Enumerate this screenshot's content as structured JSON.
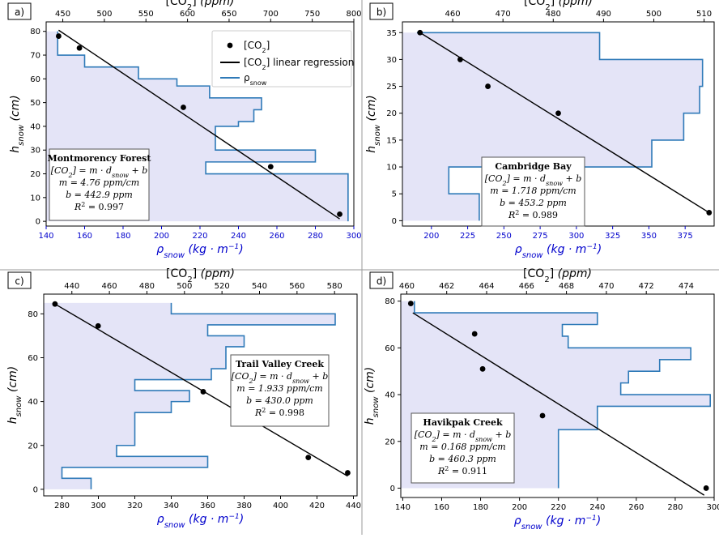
{
  "chart_data": [
    {
      "type": "line",
      "panel": "a)",
      "site": "Montmorency Forest",
      "co2_label": "[CO2]",
      "regression_label": "[CO2] linear regression",
      "rho_label": "ρsnow",
      "xlabel_bottom": "ρsnow (kg · m−1)",
      "xlabel_top": "[CO2] (ppm)",
      "ylabel": "hsnow (cm)",
      "xlim": [
        140,
        300
      ],
      "ylim": [
        -2,
        84
      ],
      "top_xlim": [
        430,
        800
      ],
      "xticks": [
        140,
        160,
        180,
        200,
        220,
        240,
        260,
        280,
        300
      ],
      "yticks": [
        0,
        10,
        20,
        30,
        40,
        50,
        60,
        70,
        80
      ],
      "top_ticks": [
        450,
        500,
        550,
        600,
        650,
        700,
        750,
        800
      ],
      "density_profile": [
        {
          "h_top": 80,
          "h_bottom": 70,
          "rho": 146
        },
        {
          "h_top": 70,
          "h_bottom": 65,
          "rho": 160
        },
        {
          "h_top": 65,
          "h_bottom": 60,
          "rho": 188
        },
        {
          "h_top": 60,
          "h_bottom": 57,
          "rho": 208
        },
        {
          "h_top": 57,
          "h_bottom": 52,
          "rho": 225
        },
        {
          "h_top": 52,
          "h_bottom": 47,
          "rho": 252
        },
        {
          "h_top": 47,
          "h_bottom": 42,
          "rho": 248
        },
        {
          "h_top": 42,
          "h_bottom": 40,
          "rho": 240
        },
        {
          "h_top": 40,
          "h_bottom": 30,
          "rho": 228
        },
        {
          "h_top": 30,
          "h_bottom": 25,
          "rho": 280
        },
        {
          "h_top": 25,
          "h_bottom": 20,
          "rho": 223
        },
        {
          "h_top": 20,
          "h_bottom": 0,
          "rho": 297
        }
      ],
      "co2_points": [
        {
          "co2": 445,
          "h": 78
        },
        {
          "co2": 470,
          "h": 73
        },
        {
          "co2": 595,
          "h": 48
        },
        {
          "co2": 700,
          "h": 23
        },
        {
          "co2": 783,
          "h": 3
        }
      ],
      "regression": {
        "co2_start": 445,
        "h_start": 80.5,
        "co2_end": 783,
        "h_end": 1
      },
      "stats": {
        "title": "Montmorency Forest",
        "equation": "[CO2] = m · dsnow + b",
        "m": "m = 4.76 ppm/cm",
        "b": "b = 442.9 ppm",
        "r2": "R2 = 0.997"
      },
      "colors": {
        "fill": "#e4e4f7",
        "step": "#2f7ab8",
        "points": "#000000",
        "regression": "#000000",
        "bottom_ticks": "#0000cc"
      }
    },
    {
      "type": "line",
      "panel": "b)",
      "site": "Cambridge Bay",
      "xlabel_bottom": "ρsnow (kg · m−1)",
      "xlabel_top": "[CO2] (ppm)",
      "ylabel": "hsnow (cm)",
      "xlim": [
        180,
        395
      ],
      "ylim": [
        -1,
        37
      ],
      "top_xlim": [
        450,
        512
      ],
      "xticks": [
        200,
        225,
        250,
        275,
        300,
        325,
        350,
        375
      ],
      "yticks": [
        0,
        5,
        10,
        15,
        20,
        25,
        30,
        35
      ],
      "top_ticks": [
        460,
        470,
        480,
        490,
        500,
        510
      ],
      "density_profile": [
        {
          "h_top": 35,
          "h_bottom": 30,
          "rho": 316
        },
        {
          "h_top": 30,
          "h_bottom": 25,
          "rho": 387
        },
        {
          "h_top": 25,
          "h_bottom": 20,
          "rho": 385
        },
        {
          "h_top": 20,
          "h_bottom": 15,
          "rho": 374
        },
        {
          "h_top": 15,
          "h_bottom": 10,
          "rho": 352
        },
        {
          "h_top": 10,
          "h_bottom": 5,
          "rho": 212
        },
        {
          "h_top": 5,
          "h_bottom": 0,
          "rho": 233
        }
      ],
      "density_edge_rho": 190,
      "co2_points": [
        {
          "co2": 453.5,
          "h": 35
        },
        {
          "co2": 461.5,
          "h": 30
        },
        {
          "co2": 467,
          "h": 25
        },
        {
          "co2": 481,
          "h": 20
        },
        {
          "co2": 511,
          "h": 1.5
        }
      ],
      "regression": {
        "co2_start": 453.5,
        "h_start": 35,
        "co2_end": 511,
        "h_end": 1.5
      },
      "stats": {
        "title": "Cambridge Bay",
        "equation": "[CO2] = m · dsnow + b",
        "m": "m = 1.718 ppm/cm",
        "b": "b = 453.2 ppm",
        "r2": "R2 = 0.989"
      },
      "colors": {
        "fill": "#e4e4f7",
        "step": "#2f7ab8",
        "points": "#000000",
        "regression": "#000000",
        "bottom_ticks": "#0000cc"
      }
    },
    {
      "type": "line",
      "panel": "c)",
      "site": "Trail Valley Creek",
      "xlabel_bottom": "ρsnow (kg · m−1)",
      "xlabel_top": "[CO2] (ppm)",
      "ylabel": "hsnow (cm)",
      "xlim": [
        270,
        442
      ],
      "ylim": [
        -3,
        89
      ],
      "top_xlim": [
        425,
        592
      ],
      "xticks": [
        280,
        300,
        320,
        340,
        360,
        380,
        400,
        420,
        440
      ],
      "yticks": [
        0,
        20,
        40,
        60,
        80
      ],
      "top_ticks": [
        440,
        460,
        480,
        500,
        520,
        540,
        560,
        580
      ],
      "density_profile": [
        {
          "h_top": 85,
          "h_bottom": 80,
          "rho": 340
        },
        {
          "h_top": 80,
          "h_bottom": 75,
          "rho": 430
        },
        {
          "h_top": 75,
          "h_bottom": 70,
          "rho": 360
        },
        {
          "h_top": 70,
          "h_bottom": 65,
          "rho": 380
        },
        {
          "h_top": 65,
          "h_bottom": 55,
          "rho": 370
        },
        {
          "h_top": 55,
          "h_bottom": 50,
          "rho": 362
        },
        {
          "h_top": 50,
          "h_bottom": 45,
          "rho": 320
        },
        {
          "h_top": 45,
          "h_bottom": 40,
          "rho": 350
        },
        {
          "h_top": 40,
          "h_bottom": 35,
          "rho": 340
        },
        {
          "h_top": 35,
          "h_bottom": 20,
          "rho": 320
        },
        {
          "h_top": 20,
          "h_bottom": 15,
          "rho": 310
        },
        {
          "h_top": 15,
          "h_bottom": 10,
          "rho": 360
        },
        {
          "h_top": 10,
          "h_bottom": 5,
          "rho": 280
        },
        {
          "h_top": 5,
          "h_bottom": 0,
          "rho": 296
        }
      ],
      "co2_points": [
        {
          "co2": 431,
          "h": 84.5
        },
        {
          "co2": 454,
          "h": 74.5
        },
        {
          "co2": 510,
          "h": 44.5
        },
        {
          "co2": 566,
          "h": 14.5
        },
        {
          "co2": 587,
          "h": 7.5
        }
      ],
      "regression": {
        "co2_start": 431,
        "h_start": 84.5,
        "co2_end": 587,
        "h_end": 6
      },
      "stats": {
        "title": "Trail Valley Creek",
        "equation": "[CO2] = m · dsnow + b",
        "m": "m = 1.933 ppm/cm",
        "b": "b = 430.0 ppm",
        "r2": "R2 = 0.998"
      },
      "colors": {
        "fill": "#e4e4f7",
        "step": "#2f7ab8",
        "points": "#000000",
        "regression": "#000000",
        "bottom_ticks": "#000000"
      }
    },
    {
      "type": "line",
      "panel": "d)",
      "site": "Havikpak Creek",
      "xlabel_bottom": "ρsnow (kg · m−1)",
      "xlabel_top": "[CO2] (ppm)",
      "ylabel": "hsnow (cm)",
      "xlim": [
        139,
        300
      ],
      "ylim": [
        -4,
        83
      ],
      "top_xlim": [
        459.7,
        475.4
      ],
      "xticks": [
        140,
        160,
        180,
        200,
        220,
        240,
        260,
        280,
        300
      ],
      "yticks": [
        0,
        20,
        40,
        60,
        80
      ],
      "top_ticks": [
        460,
        462,
        464,
        466,
        468,
        470,
        472,
        474
      ],
      "density_profile": [
        {
          "h_top": 80,
          "h_bottom": 75,
          "rho": 146
        },
        {
          "h_top": 75,
          "h_bottom": 70,
          "rho": 240
        },
        {
          "h_top": 70,
          "h_bottom": 65,
          "rho": 222
        },
        {
          "h_top": 65,
          "h_bottom": 60,
          "rho": 225
        },
        {
          "h_top": 60,
          "h_bottom": 55,
          "rho": 288
        },
        {
          "h_top": 55,
          "h_bottom": 50,
          "rho": 272
        },
        {
          "h_top": 50,
          "h_bottom": 45,
          "rho": 256
        },
        {
          "h_top": 45,
          "h_bottom": 40,
          "rho": 252
        },
        {
          "h_top": 40,
          "h_bottom": 35,
          "rho": 298
        },
        {
          "h_top": 35,
          "h_bottom": 25,
          "rho": 240
        },
        {
          "h_top": 25,
          "h_bottom": 0,
          "rho": 220
        }
      ],
      "co2_points": [
        {
          "co2": 460.2,
          "h": 79
        },
        {
          "co2": 463.4,
          "h": 66
        },
        {
          "co2": 463.8,
          "h": 51
        },
        {
          "co2": 466.8,
          "h": 31
        },
        {
          "co2": 475,
          "h": 0
        }
      ],
      "regression": {
        "co2_start": 460.3,
        "h_start": 75,
        "co2_end": 474.9,
        "h_end": -3
      },
      "stats": {
        "title": "Havikpak Creek",
        "equation": "[CO2] = m · dsnow + b",
        "m": "m = 0.168 ppm/cm",
        "b": "b = 460.3 ppm",
        "r2": "R2 = 0.911"
      },
      "colors": {
        "fill": "#e4e4f7",
        "step": "#2f7ab8",
        "points": "#000000",
        "regression": "#000000",
        "bottom_ticks": "#000000"
      }
    }
  ]
}
